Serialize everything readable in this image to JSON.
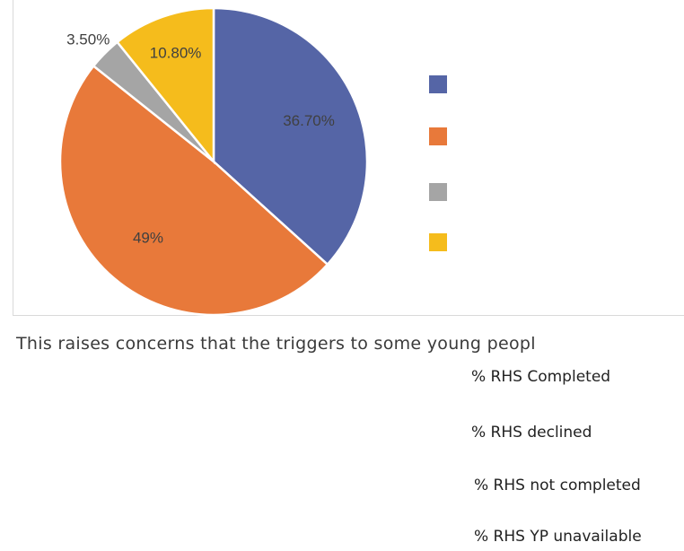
{
  "chart_data": {
    "type": "pie",
    "categories": [
      "% RHS Completed",
      "% RHS declined",
      "% RHS not completed",
      "% RHS YP unavailable"
    ],
    "values": [
      36.7,
      49,
      3.5,
      10.8
    ],
    "labels": [
      "36.70%",
      "49%",
      "3.50%",
      "10.80%"
    ],
    "colors": [
      "#5565a6",
      "#e8793a",
      "#a5a5a5",
      "#f5bc1c"
    ],
    "legend_placement": "right"
  },
  "body_text": "This raises concerns that the triggers to some young peopl",
  "legend": [
    {
      "label": "% RHS Completed"
    },
    {
      "label": "% RHS declined"
    },
    {
      "label": "% RHS not completed"
    },
    {
      "label": "% RHS YP unavailable"
    }
  ]
}
